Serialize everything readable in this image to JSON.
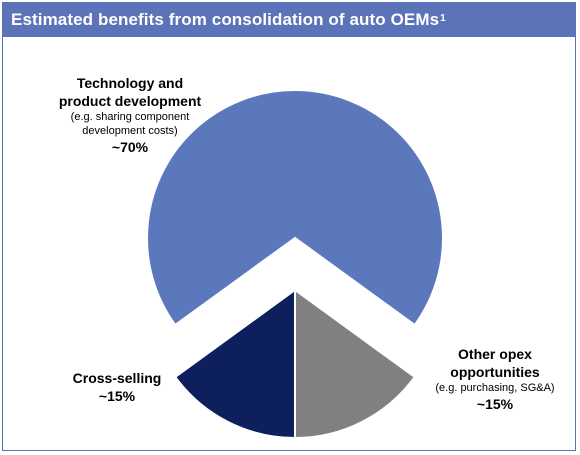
{
  "header": {
    "title": "Estimated benefits from consolidation of auto OEMs",
    "footnote": "1"
  },
  "colors": {
    "header_bg": "#5b73b8",
    "technology": "#5b78bd",
    "cross_selling": "#0d1f5c",
    "other_opex": "#808080"
  },
  "chart_data": {
    "type": "pie",
    "title": "Estimated benefits from consolidation of auto OEMs",
    "slices": [
      {
        "name": "Technology and product development",
        "note": "(e.g. sharing component development costs)",
        "value": 70,
        "value_label": "~70%",
        "color": "#5b78bd",
        "exploded": true
      },
      {
        "name": "Other opex opportunities",
        "note": "(e.g. purchasing, SG&A)",
        "value": 15,
        "value_label": "~15%",
        "color": "#808080",
        "exploded": false
      },
      {
        "name": "Cross-selling",
        "note": "",
        "value": 15,
        "value_label": "~15%",
        "color": "#0d1f5c",
        "exploded": false
      }
    ]
  }
}
